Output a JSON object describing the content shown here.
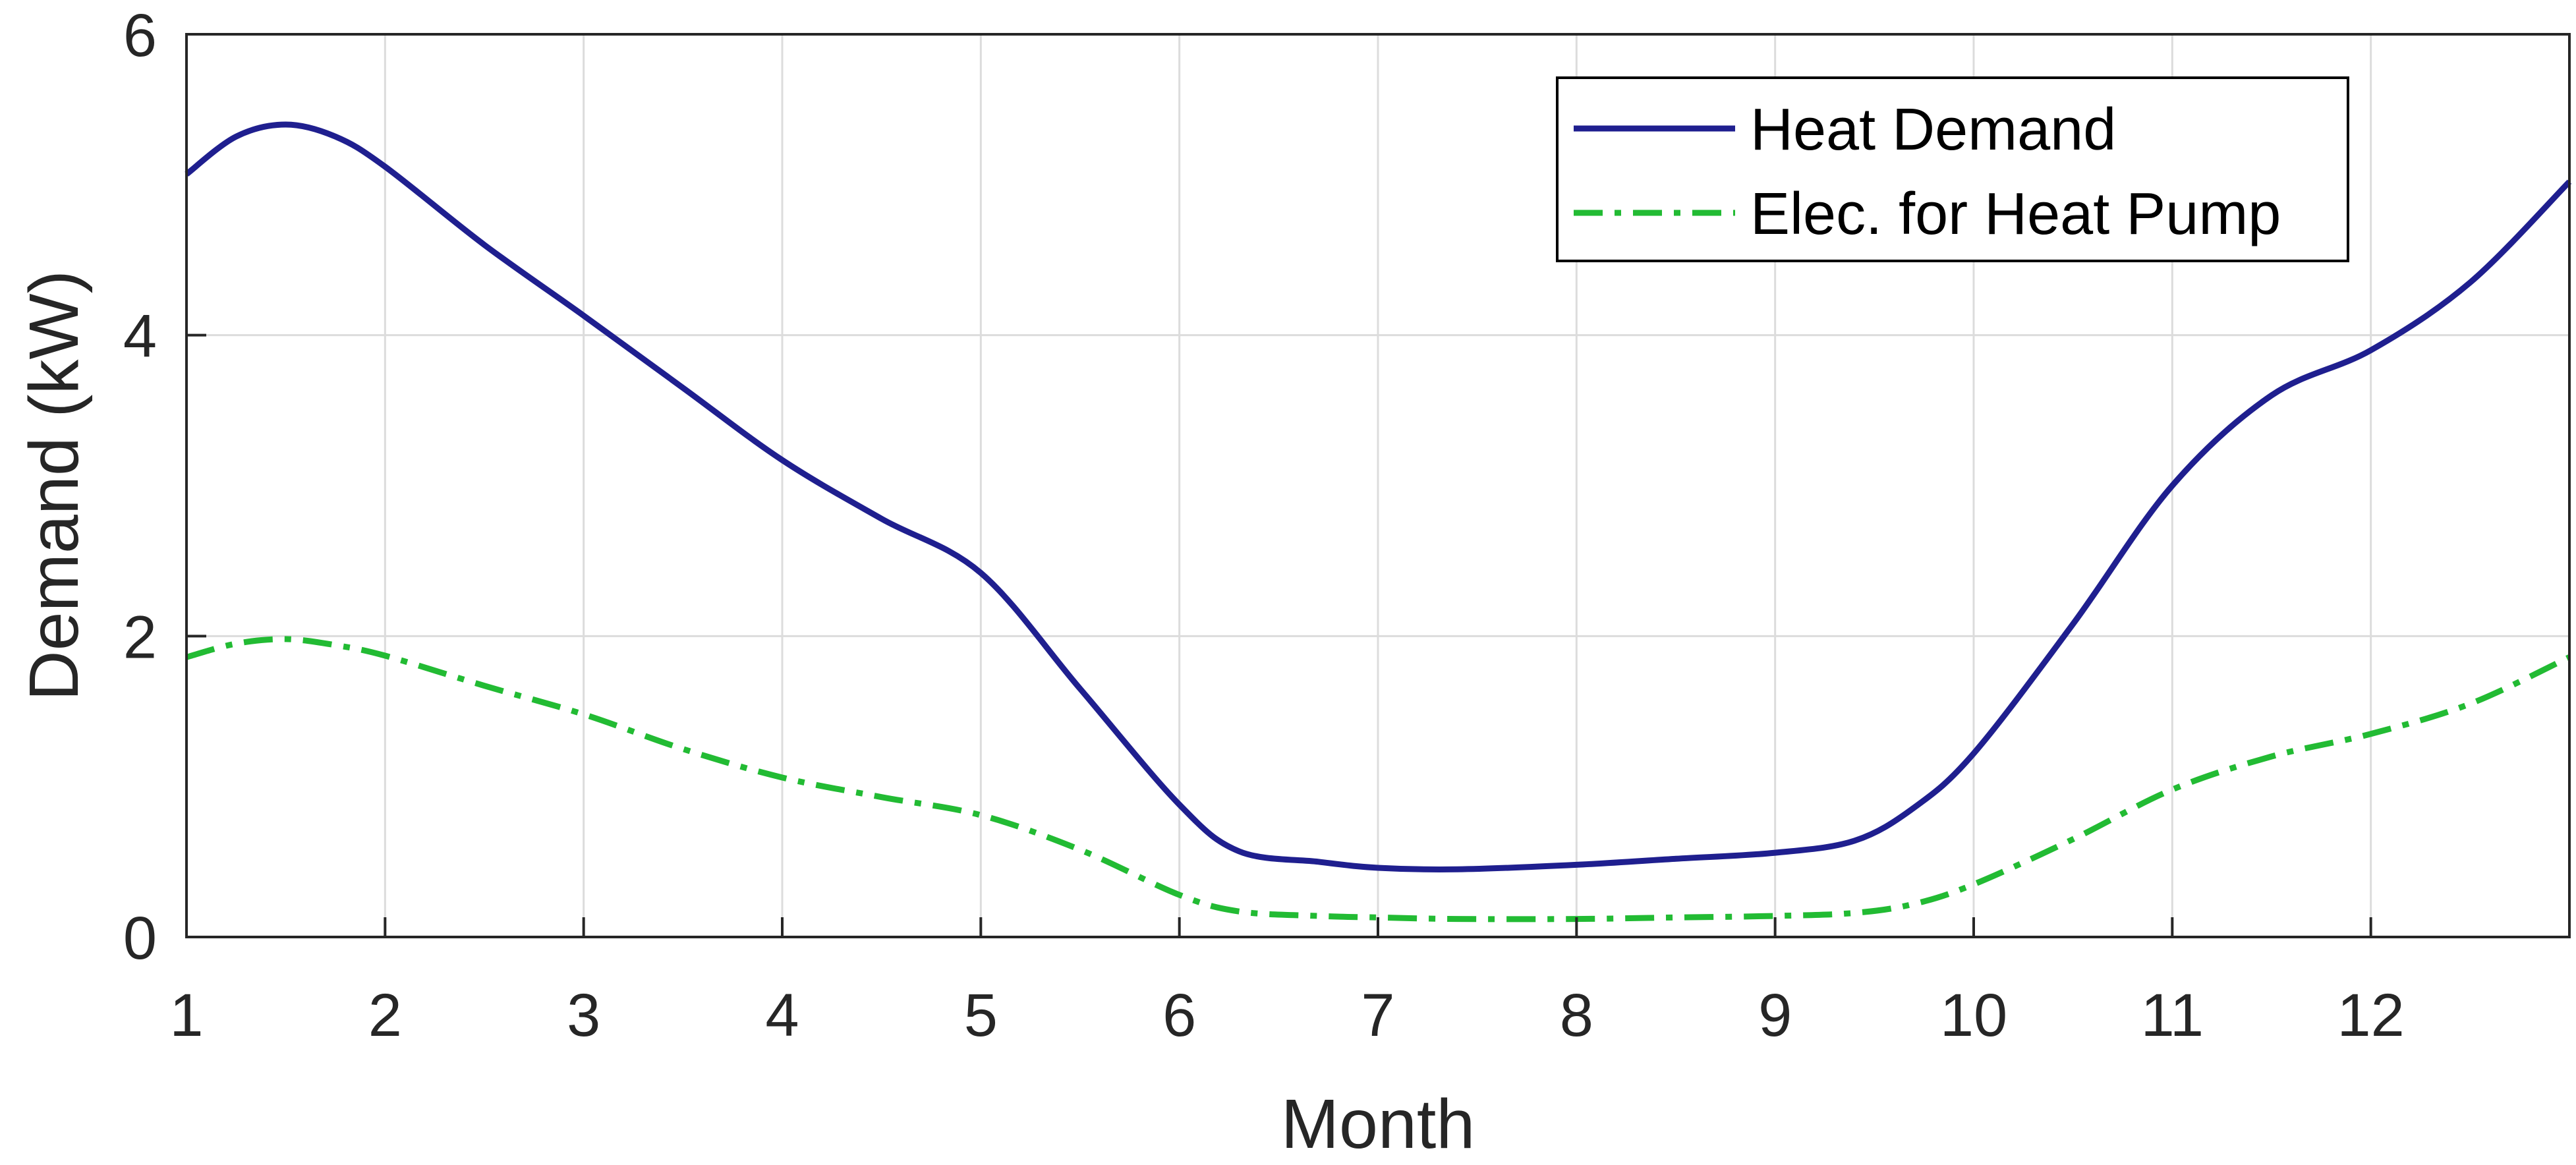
{
  "chart_data": {
    "type": "line",
    "title": "",
    "xlabel": "Month",
    "ylabel": "Demand (kW)",
    "xlim": [
      1,
      13
    ],
    "ylim": [
      0,
      6
    ],
    "xticks": [
      1,
      2,
      3,
      4,
      5,
      6,
      7,
      8,
      9,
      10,
      11,
      12
    ],
    "yticks": [
      0,
      2,
      4,
      6
    ],
    "grid": true,
    "legend_position": "top-right",
    "series": [
      {
        "name": "Heat Demand",
        "color": "#1f1f8f",
        "style": "solid",
        "x": [
          1,
          1.25,
          1.5,
          1.75,
          2,
          2.5,
          3,
          3.5,
          4,
          4.5,
          5,
          5.5,
          6,
          6.3,
          6.7,
          7,
          7.4,
          8,
          8.5,
          9,
          9.4,
          9.7,
          10,
          10.5,
          11,
          11.5,
          12,
          12.5,
          13
        ],
        "values": [
          5.07,
          5.32,
          5.4,
          5.32,
          5.12,
          4.6,
          4.13,
          3.65,
          3.17,
          2.78,
          2.42,
          1.65,
          0.88,
          0.57,
          0.5,
          0.46,
          0.45,
          0.48,
          0.52,
          0.56,
          0.64,
          0.86,
          1.22,
          2.08,
          3.0,
          3.6,
          3.9,
          4.35,
          5.02
        ]
      },
      {
        "name": "Elec. for Heat Pump",
        "color": "#22bb33",
        "style": "dashdot",
        "x": [
          1,
          1.25,
          1.5,
          1.75,
          2,
          2.5,
          3,
          3.5,
          4,
          4.5,
          5,
          5.5,
          6,
          6.3,
          6.7,
          7,
          7.4,
          8,
          8.5,
          9,
          9.4,
          9.7,
          10,
          10.5,
          11,
          11.5,
          12,
          12.5,
          13
        ],
        "values": [
          1.86,
          1.95,
          1.98,
          1.94,
          1.87,
          1.67,
          1.48,
          1.25,
          1.06,
          0.93,
          0.81,
          0.58,
          0.28,
          0.17,
          0.14,
          0.13,
          0.12,
          0.12,
          0.13,
          0.14,
          0.16,
          0.22,
          0.35,
          0.65,
          0.98,
          1.2,
          1.35,
          1.55,
          1.86
        ]
      }
    ]
  }
}
